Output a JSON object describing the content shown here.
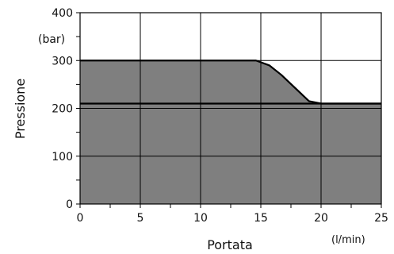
{
  "chart_data": {
    "type": "area",
    "xlabel": "Portata",
    "ylabel": "Pressione",
    "x_unit": "(l/min)",
    "y_unit": "(bar)",
    "xlim": [
      0,
      25
    ],
    "ylim": [
      0,
      400
    ],
    "x_ticks": [
      "0",
      "5",
      "10",
      "15",
      "20",
      "25"
    ],
    "y_ticks": [
      "0",
      "100",
      "200",
      "300",
      "400"
    ],
    "grid": true,
    "series": [
      {
        "x": [
          0,
          25
        ],
        "y": [
          210,
          210
        ],
        "fill": "#cfcdc9"
      },
      {
        "x": [
          0,
          14.6,
          15.7,
          16.7,
          19,
          20,
          25
        ],
        "y": [
          300,
          300,
          290,
          270,
          215,
          210,
          210
        ],
        "fill": "#7f7f7f"
      }
    ],
    "colors": {
      "base_fill": "#cfcdc9",
      "upper_fill": "#7f7f7f",
      "line": "#000000",
      "grid": "#000000"
    }
  }
}
